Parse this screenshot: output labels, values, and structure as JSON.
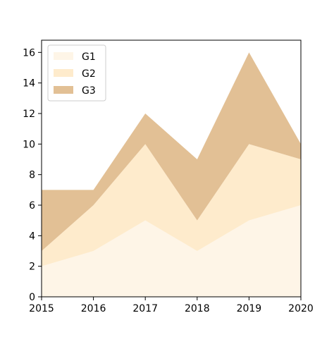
{
  "chart_data": {
    "type": "area",
    "stacked": true,
    "x": [
      2015,
      2016,
      2017,
      2018,
      2019,
      2020
    ],
    "x_tick_labels": [
      "2015",
      "2016",
      "2017",
      "2018",
      "2019",
      "2020"
    ],
    "y_tick_labels": [
      "0",
      "2",
      "4",
      "6",
      "8",
      "10",
      "12",
      "14",
      "16"
    ],
    "series": [
      {
        "name": "G1",
        "values": [
          2,
          3,
          5,
          3,
          5,
          6
        ],
        "color": "#fef5e7"
      },
      {
        "name": "G2",
        "values": [
          1,
          3,
          5,
          2,
          5,
          3
        ],
        "color": "#feebcc"
      },
      {
        "name": "G3",
        "values": [
          4,
          1,
          2,
          4,
          6,
          1
        ],
        "color": "#e2c095"
      }
    ],
    "xlim": [
      2015,
      2020
    ],
    "ylim": [
      0,
      16.8
    ],
    "title": "",
    "xlabel": "",
    "ylabel": "",
    "grid": false,
    "legend_position": "top-left"
  }
}
